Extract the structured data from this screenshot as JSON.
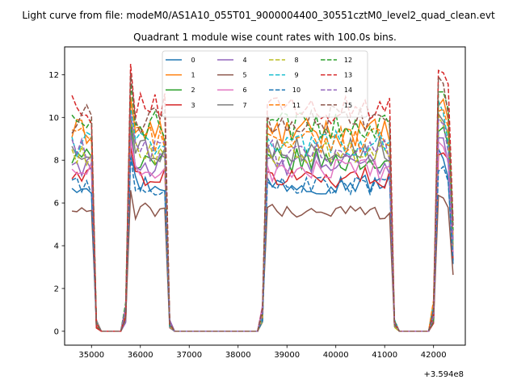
{
  "chart_data": {
    "type": "line",
    "suptitle": "Light curve from file: modeM0/AS1A10_055T01_9000004400_30551cztM0_level2_quad_clean.evt",
    "title": "Quadrant 1 module wise count rates with 100.0s bins.",
    "xlabel": "",
    "ylabel": "",
    "x_offset_label": "+3.594e8",
    "xlim": [
      34450,
      42650
    ],
    "ylim": [
      -0.65,
      13.3
    ],
    "xticks": [
      35000,
      36000,
      37000,
      38000,
      39000,
      40000,
      41000,
      42000
    ],
    "xtick_labels": [
      "35000",
      "36000",
      "37000",
      "38000",
      "39000",
      "40000",
      "41000",
      "42000"
    ],
    "yticks": [
      0,
      2,
      4,
      6,
      8,
      10,
      12
    ],
    "ytick_labels": [
      "0",
      "2",
      "4",
      "6",
      "8",
      "10",
      "12"
    ],
    "grid": false,
    "legend_placement": "top-center",
    "legend_columns": 4,
    "series": [
      {
        "name": "0",
        "color": "#1f77b4",
        "dash": "solid",
        "level": 6.9,
        "peak": 8.6
      },
      {
        "name": "1",
        "color": "#ff7f0e",
        "dash": "solid",
        "level": 9.3,
        "peak": 11.4
      },
      {
        "name": "2",
        "color": "#2ca02c",
        "dash": "solid",
        "level": 8.0,
        "peak": 10.1
      },
      {
        "name": "3",
        "color": "#d62728",
        "dash": "solid",
        "level": 7.2,
        "peak": 8.9
      },
      {
        "name": "4",
        "color": "#9467bd",
        "dash": "solid",
        "level": 7.8,
        "peak": 9.6
      },
      {
        "name": "5",
        "color": "#8c564b",
        "dash": "solid",
        "level": 5.6,
        "peak": 6.8
      },
      {
        "name": "6",
        "color": "#e377c2",
        "dash": "solid",
        "level": 7.5,
        "peak": 9.2
      },
      {
        "name": "7",
        "color": "#7f7f7f",
        "dash": "solid",
        "level": 8.5,
        "peak": 10.4
      },
      {
        "name": "8",
        "color": "#bcbd22",
        "dash": "dashed",
        "level": 8.3,
        "peak": 10.2
      },
      {
        "name": "9",
        "color": "#17becf",
        "dash": "dashed",
        "level": 8.8,
        "peak": 10.8
      },
      {
        "name": "10",
        "color": "#1f77b4",
        "dash": "dashed",
        "level": 6.8,
        "peak": 8.3
      },
      {
        "name": "11",
        "color": "#ff7f0e",
        "dash": "dashed",
        "level": 9.0,
        "peak": 11.0
      },
      {
        "name": "12",
        "color": "#2ca02c",
        "dash": "dashed",
        "level": 9.6,
        "peak": 11.8
      },
      {
        "name": "13",
        "color": "#d62728",
        "dash": "dashed",
        "level": 10.4,
        "peak": 12.7
      },
      {
        "name": "14",
        "color": "#9467bd",
        "dash": "dashed",
        "level": 8.4,
        "peak": 10.3
      },
      {
        "name": "15",
        "color": "#8c564b",
        "dash": "dashed",
        "level": 9.9,
        "peak": 12.2
      }
    ]
  }
}
